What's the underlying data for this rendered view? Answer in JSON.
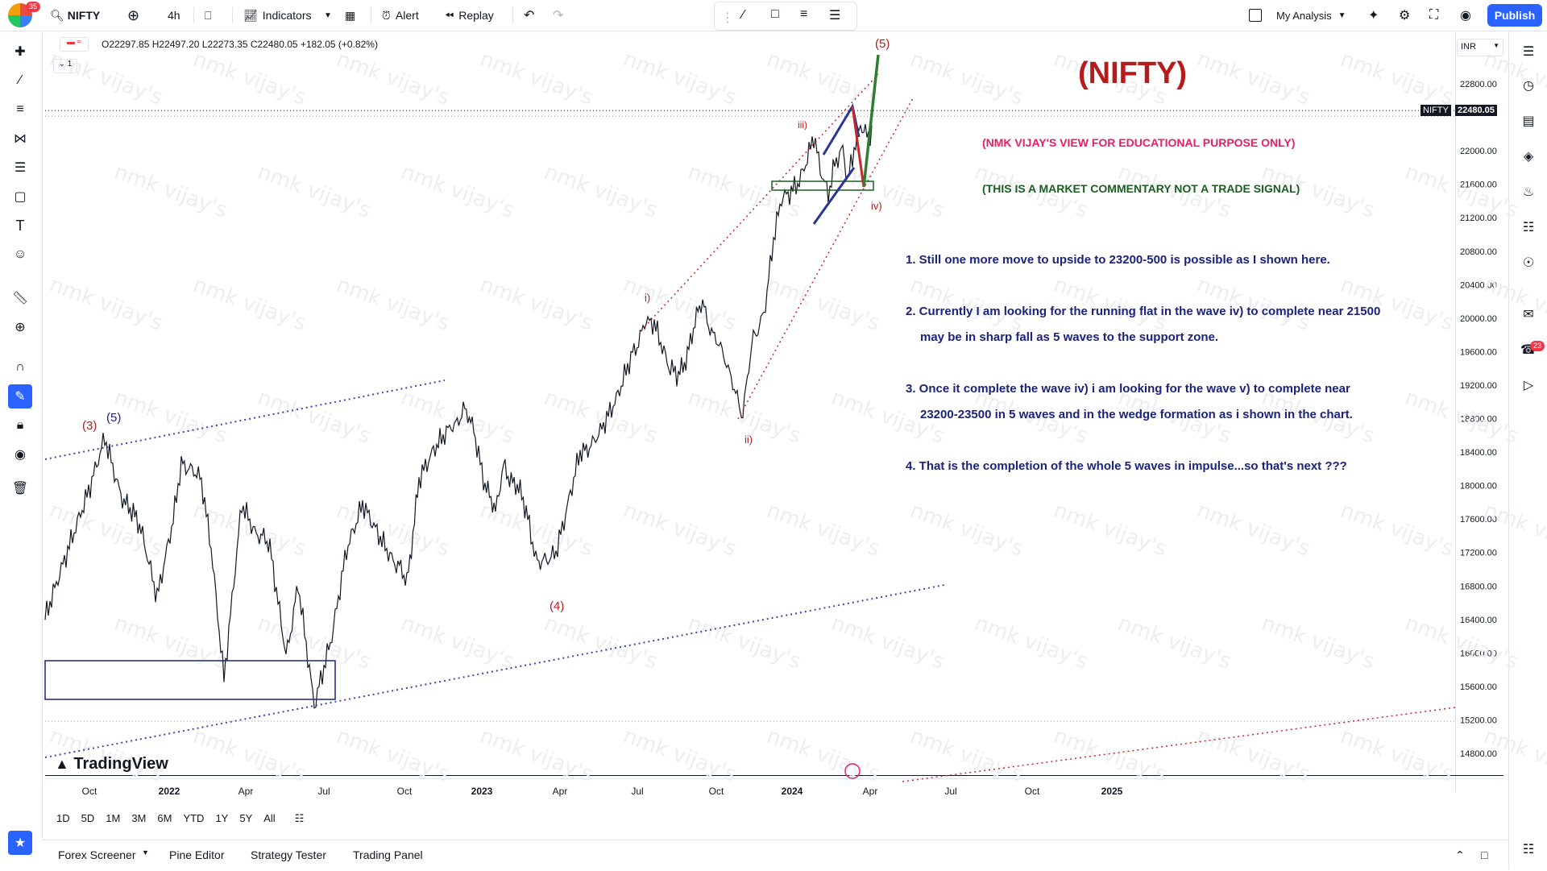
{
  "topbar": {
    "avatar_badge": "35",
    "symbol": "NIFTY",
    "interval": "4h",
    "indicators": "Indicators",
    "alert": "Alert",
    "replay": "Replay",
    "layout_name": "My Analysis",
    "publish": "Publish"
  },
  "legend": {
    "ohlc": "O22297.85 H22497.20 L22273.35 C22480.05 +182.05 (+0.82%)",
    "collapse": "1"
  },
  "price_axis": {
    "currency": "INR",
    "ticks": [
      "22800.00",
      "22000.00",
      "21600.00",
      "21200.00",
      "20800.00",
      "20400.00",
      "20000.00",
      "19600.00",
      "19200.00",
      "18800.00",
      "18400.00",
      "18000.00",
      "17600.00",
      "17200.00",
      "16800.00",
      "16400.00",
      "16000.00",
      "15600.00",
      "15200.00",
      "14800.00"
    ],
    "symbol_tag": "NIFTY",
    "last_price": "22480.05"
  },
  "time_axis": {
    "labels": [
      "Oct",
      "2022",
      "Apr",
      "Jul",
      "Oct",
      "2023",
      "Apr",
      "Jul",
      "Oct",
      "2024",
      "Apr",
      "Jul",
      "Oct",
      "2025"
    ]
  },
  "ranges": [
    "1D",
    "5D",
    "1M",
    "3M",
    "6M",
    "YTD",
    "1Y",
    "5Y",
    "All"
  ],
  "bottom_tabs": [
    "Forex Screener",
    "Pine Editor",
    "Strategy Tester",
    "Trading Panel"
  ],
  "chart_annotations": {
    "title": "(NIFTY)",
    "disclaimer1": "(NMK VIJAY'S VIEW FOR EDUCATIONAL PURPOSE ONLY)",
    "disclaimer2": "(THIS IS A MARKET COMMENTARY NOT A TRADE SIGNAL)",
    "points": [
      "1. Still one more move to upside to 23200-500 is possible as I shown here.",
      "2. Currently I am looking for the running flat in the wave iv) to complete near 21500",
      "may be in sharp fall as 5 waves to the support zone.",
      "3. Once it complete the wave iv) i am looking for the wave v) to complete near",
      "23200-23500 in 5 waves and in the wedge formation as i shown in the chart.",
      "4. That is the completion of the whole 5 waves in impulse...so that's next ???"
    ],
    "wave_labels": [
      "(3)",
      "(5)",
      "(4)",
      "i)",
      "ii)",
      "iii)",
      "iv)",
      "(5)"
    ],
    "brand": "TradingView",
    "watermark": "nmk vijay's"
  },
  "colors": {
    "accent": "#2962ff",
    "title_red": "#b71c1c",
    "disclaimer_pink": "#e91e63",
    "disclaimer_green": "#1b5e20",
    "text_blue": "#1a237e"
  }
}
